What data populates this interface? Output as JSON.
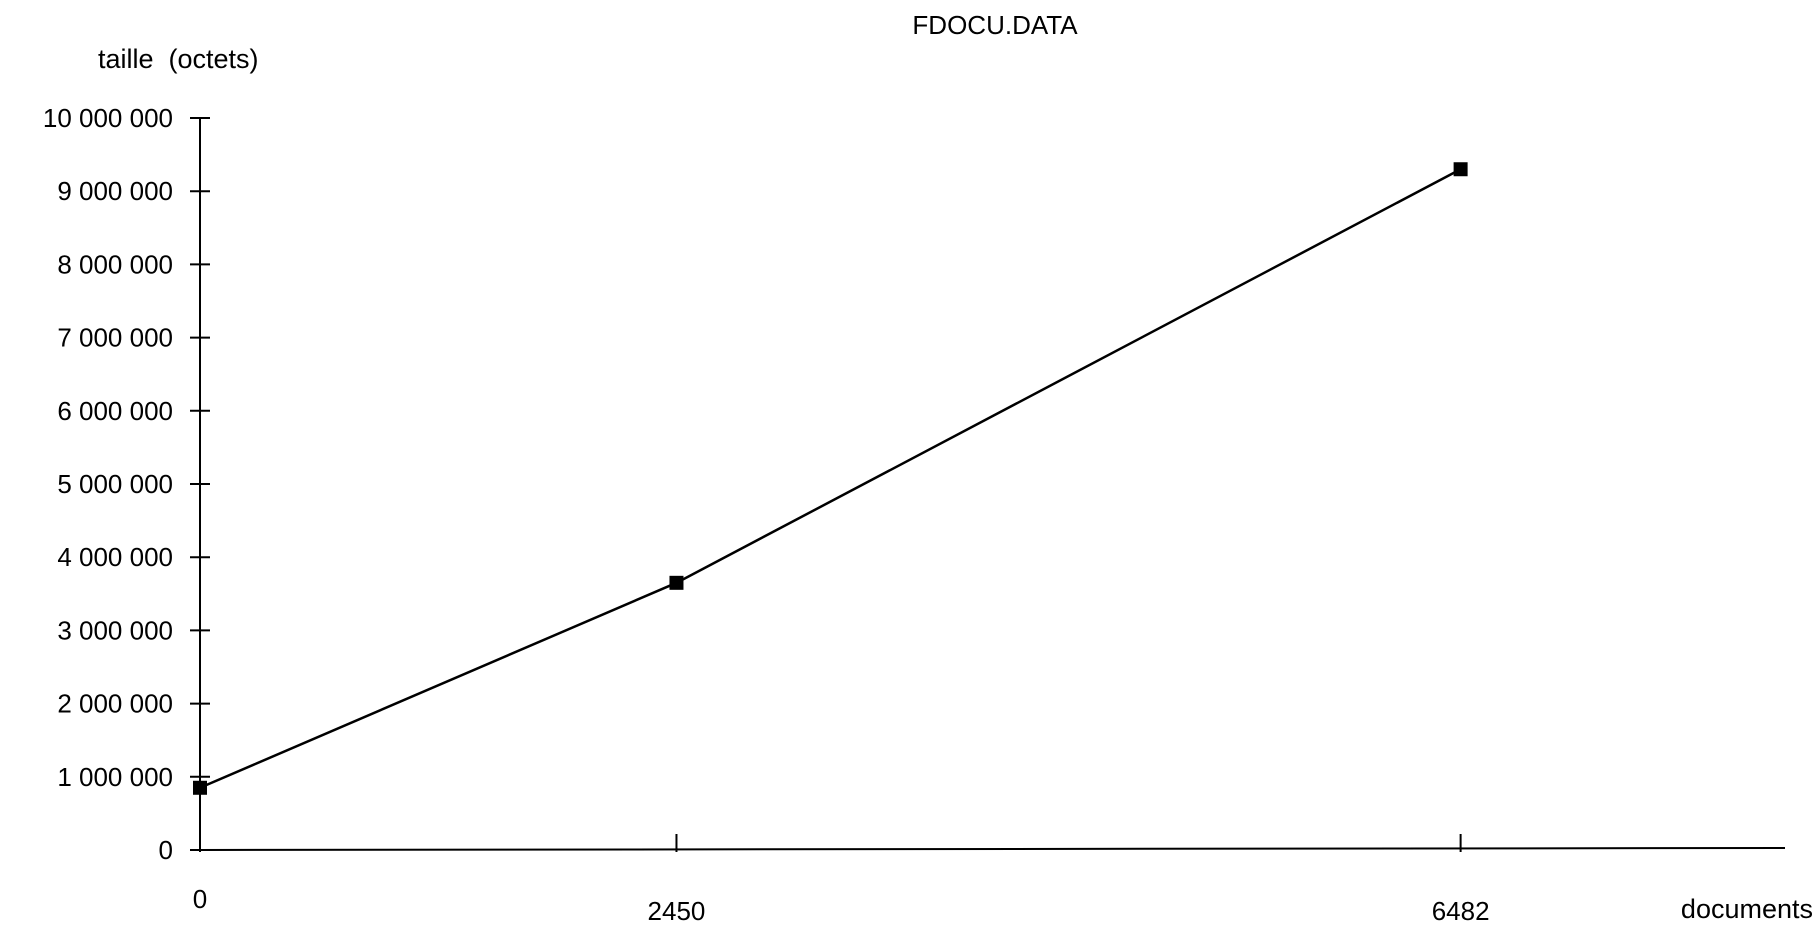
{
  "chart_data": {
    "type": "line",
    "title": "FDOCU.DATA",
    "ylabel": "taille  (octets)",
    "xlabel": "documents",
    "x_ticks": [
      "0",
      "2450",
      "6482"
    ],
    "x_tick_values": [
      0,
      2450,
      6482
    ],
    "y_ticks": [
      "0",
      "1 000 000",
      "2 000 000",
      "3 000 000",
      "4 000 000",
      "5 000 000",
      "6 000 000",
      "7 000 000",
      "8 000 000",
      "9 000 000",
      "10 000 000"
    ],
    "xlim": [
      0,
      8150
    ],
    "ylim": [
      0,
      10000000
    ],
    "grid": false,
    "series": [
      {
        "x": [
          0,
          2450,
          6482
        ],
        "y": [
          850000,
          3650000,
          9300000
        ]
      }
    ]
  }
}
